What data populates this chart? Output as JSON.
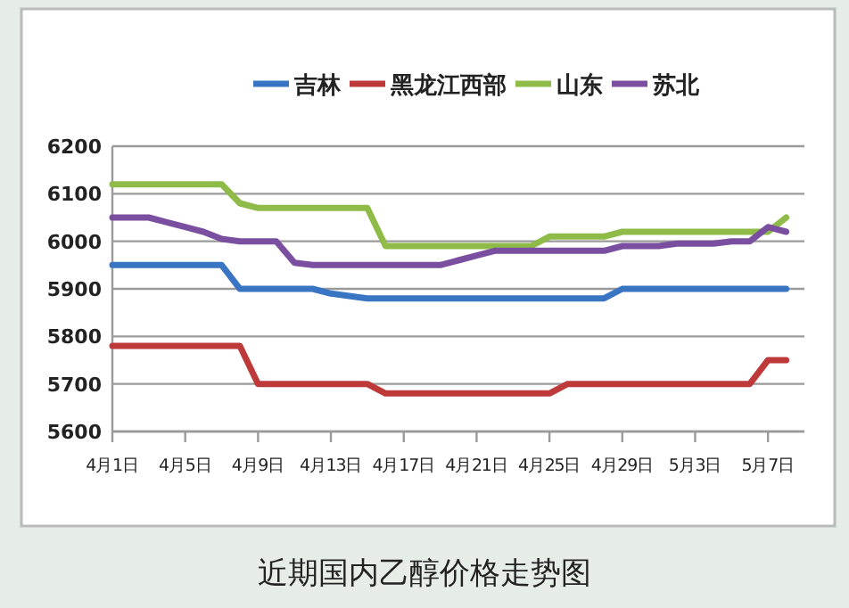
{
  "chart_data": {
    "type": "line",
    "title": "近期国内乙醇价格走势图",
    "categories": [
      "4月1日",
      null,
      null,
      null,
      "4月5日",
      null,
      null,
      null,
      "4月9日",
      null,
      null,
      null,
      "4月13日",
      null,
      null,
      null,
      "4月17日",
      null,
      null,
      null,
      "4月21日",
      null,
      null,
      null,
      "4月25日",
      null,
      null,
      null,
      "4月29日",
      null,
      null,
      null,
      "5月3日",
      null,
      null,
      null,
      "5月7日",
      null
    ],
    "series": [
      {
        "name": "吉林",
        "color": "#3a75c4",
        "values": [
          5950,
          5950,
          5950,
          5950,
          5950,
          5950,
          5950,
          5900,
          5900,
          5900,
          5900,
          5900,
          5890,
          5885,
          5880,
          5880,
          5880,
          5880,
          5880,
          5880,
          5880,
          5880,
          5880,
          5880,
          5880,
          5880,
          5880,
          5880,
          5900,
          5900,
          5900,
          5900,
          5900,
          5900,
          5900,
          5900,
          5900,
          5900
        ]
      },
      {
        "name": "黑龙江西部",
        "color": "#be3a3a",
        "values": [
          5780,
          5780,
          5780,
          5780,
          5780,
          5780,
          5780,
          5780,
          5700,
          5700,
          5700,
          5700,
          5700,
          5700,
          5700,
          5680,
          5680,
          5680,
          5680,
          5680,
          5680,
          5680,
          5680,
          5680,
          5680,
          5700,
          5700,
          5700,
          5700,
          5700,
          5700,
          5700,
          5700,
          5700,
          5700,
          5700,
          5750,
          5750
        ]
      },
      {
        "name": "山东",
        "color": "#8fbb48",
        "values": [
          6120,
          6120,
          6120,
          6120,
          6120,
          6120,
          6120,
          6080,
          6070,
          6070,
          6070,
          6070,
          6070,
          6070,
          6070,
          5990,
          5990,
          5990,
          5990,
          5990,
          5990,
          5990,
          5990,
          5990,
          6010,
          6010,
          6010,
          6010,
          6020,
          6020,
          6020,
          6020,
          6020,
          6020,
          6020,
          6020,
          6020,
          6050
        ]
      },
      {
        "name": "苏北",
        "color": "#7a4fa0",
        "values": [
          6050,
          6050,
          6050,
          6040,
          6030,
          6020,
          6005,
          6000,
          6000,
          6000,
          5955,
          5950,
          5950,
          5950,
          5950,
          5950,
          5950,
          5950,
          5950,
          5960,
          5970,
          5980,
          5980,
          5980,
          5980,
          5980,
          5980,
          5980,
          5990,
          5990,
          5990,
          5995,
          5995,
          5995,
          6000,
          6000,
          6030,
          6020
        ]
      }
    ],
    "ylim": [
      5600,
      6200
    ],
    "yticks": [
      5600,
      5700,
      5800,
      5900,
      6000,
      6100,
      6200
    ],
    "grid": "y",
    "legend": "top",
    "marker": "none",
    "line_style": "solid"
  }
}
